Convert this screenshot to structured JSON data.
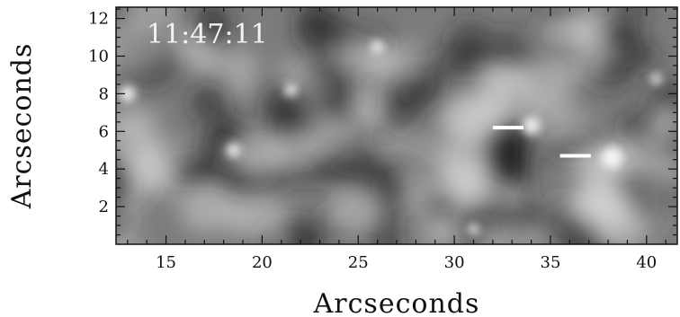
{
  "image": {
    "timestamp": "11:47:11",
    "xlabel": "Arcseconds",
    "ylabel": "Arcseconds",
    "x_range": [
      12.4,
      41.6
    ],
    "y_range": [
      0,
      12.6
    ],
    "x_ticks": [
      {
        "value": 15,
        "label": "15"
      },
      {
        "value": 20,
        "label": "20"
      },
      {
        "value": 25,
        "label": "25"
      },
      {
        "value": 30,
        "label": "30"
      },
      {
        "value": 35,
        "label": "35"
      },
      {
        "value": 40,
        "label": "40"
      }
    ],
    "y_ticks": [
      {
        "value": 2,
        "label": "2"
      },
      {
        "value": 4,
        "label": "4"
      },
      {
        "value": 6,
        "label": "6"
      },
      {
        "value": 8,
        "label": "8"
      },
      {
        "value": 10,
        "label": "10"
      },
      {
        "value": 12,
        "label": "12"
      }
    ],
    "markers": [
      {
        "x1": 32.0,
        "x2": 33.6,
        "y": 6.2
      },
      {
        "x1": 35.5,
        "x2": 37.1,
        "y": 4.7
      }
    ],
    "colors": {
      "background_mid": "#7c7c7c",
      "dark_cell": "#1e1e1e",
      "bright_feature": "#ffffff",
      "marker": "#ffffff"
    }
  }
}
